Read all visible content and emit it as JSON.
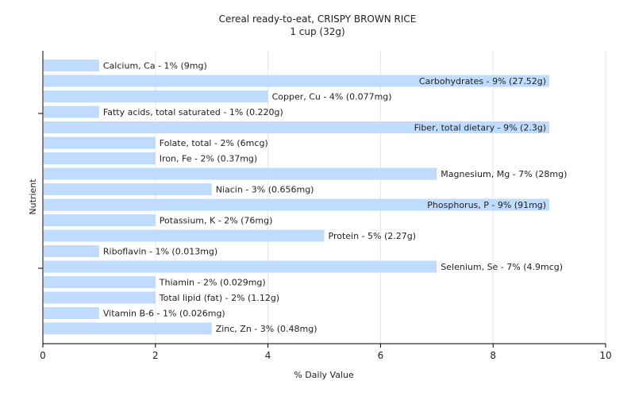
{
  "chart_data": {
    "type": "bar",
    "orientation": "horizontal",
    "title": "Cereal ready-to-eat, CRISPY BROWN RICE",
    "subtitle": "1 cup (32g)",
    "xlabel": "% Daily Value",
    "ylabel": "Nutrient",
    "xlim": [
      0,
      10
    ],
    "xticks": [
      0,
      2,
      4,
      6,
      8,
      10
    ],
    "grid": true,
    "bar_color": "#bfdcff",
    "categories": [
      "Calcium, Ca",
      "Carbohydrates",
      "Copper, Cu",
      "Fatty acids, total saturated",
      "Fiber, total dietary",
      "Folate, total",
      "Iron, Fe",
      "Magnesium, Mg",
      "Niacin",
      "Phosphorus, P",
      "Potassium, K",
      "Protein",
      "Riboflavin",
      "Selenium, Se",
      "Thiamin",
      "Total lipid (fat)",
      "Vitamin B-6",
      "Zinc, Zn"
    ],
    "values": [
      1,
      9,
      4,
      1,
      9,
      2,
      2,
      7,
      3,
      9,
      2,
      5,
      1,
      7,
      2,
      2,
      1,
      3
    ],
    "labels": [
      "Calcium, Ca - 1% (9mg)",
      "Carbohydrates - 9% (27.52g)",
      "Copper, Cu - 4% (0.077mg)",
      "Fatty acids, total saturated - 1% (0.220g)",
      "Fiber, total dietary - 9% (2.3g)",
      "Folate, total - 2% (6mcg)",
      "Iron, Fe - 2% (0.37mg)",
      "Magnesium, Mg - 7% (28mg)",
      "Niacin - 3% (0.656mg)",
      "Phosphorus, P - 9% (91mg)",
      "Potassium, K - 2% (76mg)",
      "Protein - 5% (2.27g)",
      "Riboflavin - 1% (0.013mg)",
      "Selenium, Se - 7% (4.9mcg)",
      "Thiamin - 2% (0.029mg)",
      "Total lipid (fat) - 2% (1.12g)",
      "Vitamin B-6 - 1% (0.026mg)",
      "Zinc, Zn - 3% (0.48mg)"
    ]
  }
}
